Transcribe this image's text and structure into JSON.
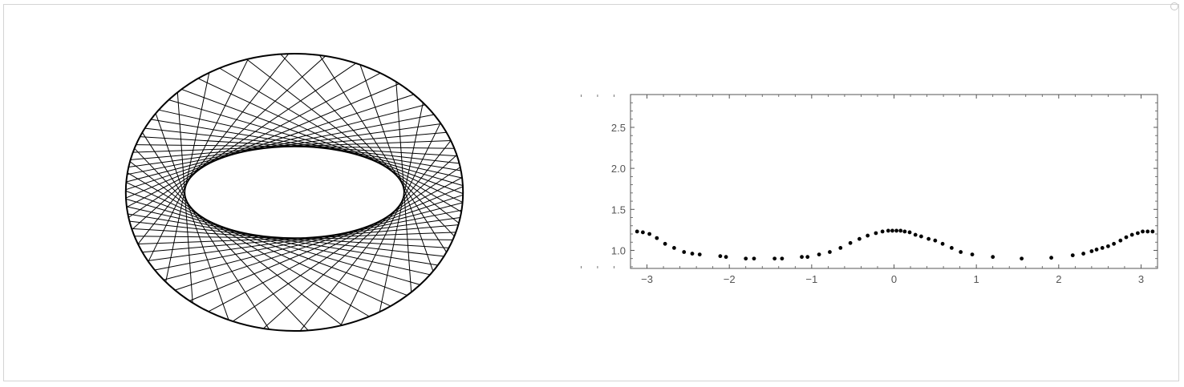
{
  "colors": {
    "ink": "#000000",
    "frame": "#d4d4d4",
    "axis": "#555555",
    "tick_text": "#555555"
  },
  "chart_data": [
    {
      "type": "diagram",
      "kind": "billiard-chords-in-ellipse",
      "outer_ellipse": {
        "semi_major": 1.215,
        "semi_minor": 1.0
      },
      "inner_caustic": {
        "semi_major": 0.79,
        "semi_minor": 0.33
      },
      "chord_count": 54
    },
    {
      "type": "scatter",
      "title": "",
      "xlabel": "",
      "ylabel": "",
      "xlim": [
        -3.2,
        3.2
      ],
      "ylim": [
        0.78,
        2.9
      ],
      "x_ticks": [
        -3,
        -2,
        -1,
        0,
        1,
        2,
        3
      ],
      "x_tick_labels": [
        "−3",
        "−2",
        "−1",
        "0",
        "1",
        "2",
        "3"
      ],
      "y_ticks": [
        1.0,
        1.5,
        2.0,
        2.5
      ],
      "y_tick_labels": [
        "1.0",
        "1.5",
        "2.0",
        "2.5"
      ],
      "grid": false,
      "points": [
        {
          "x": -3.12,
          "y": 1.23
        },
        {
          "x": -3.05,
          "y": 1.22
        },
        {
          "x": -2.97,
          "y": 1.2
        },
        {
          "x": -2.88,
          "y": 1.15
        },
        {
          "x": -2.78,
          "y": 1.08
        },
        {
          "x": -2.67,
          "y": 1.03
        },
        {
          "x": -2.55,
          "y": 0.98
        },
        {
          "x": -2.45,
          "y": 0.96
        },
        {
          "x": -2.36,
          "y": 0.95
        },
        {
          "x": -2.11,
          "y": 0.93
        },
        {
          "x": -2.04,
          "y": 0.92
        },
        {
          "x": -1.8,
          "y": 0.9
        },
        {
          "x": -1.7,
          "y": 0.9
        },
        {
          "x": -1.45,
          "y": 0.9
        },
        {
          "x": -1.36,
          "y": 0.9
        },
        {
          "x": -1.12,
          "y": 0.92
        },
        {
          "x": -1.05,
          "y": 0.92
        },
        {
          "x": -0.91,
          "y": 0.95
        },
        {
          "x": -0.78,
          "y": 0.98
        },
        {
          "x": -0.65,
          "y": 1.03
        },
        {
          "x": -0.53,
          "y": 1.09
        },
        {
          "x": -0.42,
          "y": 1.14
        },
        {
          "x": -0.32,
          "y": 1.18
        },
        {
          "x": -0.22,
          "y": 1.21
        },
        {
          "x": -0.14,
          "y": 1.23
        },
        {
          "x": -0.07,
          "y": 1.24
        },
        {
          "x": -0.02,
          "y": 1.24
        },
        {
          "x": 0.03,
          "y": 1.24
        },
        {
          "x": 0.08,
          "y": 1.24
        },
        {
          "x": 0.13,
          "y": 1.23
        },
        {
          "x": 0.19,
          "y": 1.22
        },
        {
          "x": 0.26,
          "y": 1.19
        },
        {
          "x": 0.33,
          "y": 1.17
        },
        {
          "x": 0.42,
          "y": 1.14
        },
        {
          "x": 0.5,
          "y": 1.12
        },
        {
          "x": 0.59,
          "y": 1.08
        },
        {
          "x": 0.7,
          "y": 1.03
        },
        {
          "x": 0.81,
          "y": 0.98
        },
        {
          "x": 0.95,
          "y": 0.95
        },
        {
          "x": 1.2,
          "y": 0.92
        },
        {
          "x": 1.55,
          "y": 0.9
        },
        {
          "x": 1.91,
          "y": 0.91
        },
        {
          "x": 2.17,
          "y": 0.94
        },
        {
          "x": 2.3,
          "y": 0.96
        },
        {
          "x": 2.4,
          "y": 0.99
        },
        {
          "x": 2.46,
          "y": 1.01
        },
        {
          "x": 2.53,
          "y": 1.03
        },
        {
          "x": 2.6,
          "y": 1.05
        },
        {
          "x": 2.67,
          "y": 1.08
        },
        {
          "x": 2.75,
          "y": 1.12
        },
        {
          "x": 2.82,
          "y": 1.16
        },
        {
          "x": 2.89,
          "y": 1.19
        },
        {
          "x": 2.96,
          "y": 1.21
        },
        {
          "x": 3.02,
          "y": 1.23
        },
        {
          "x": 3.08,
          "y": 1.23
        },
        {
          "x": 3.14,
          "y": 1.23
        }
      ]
    }
  ]
}
